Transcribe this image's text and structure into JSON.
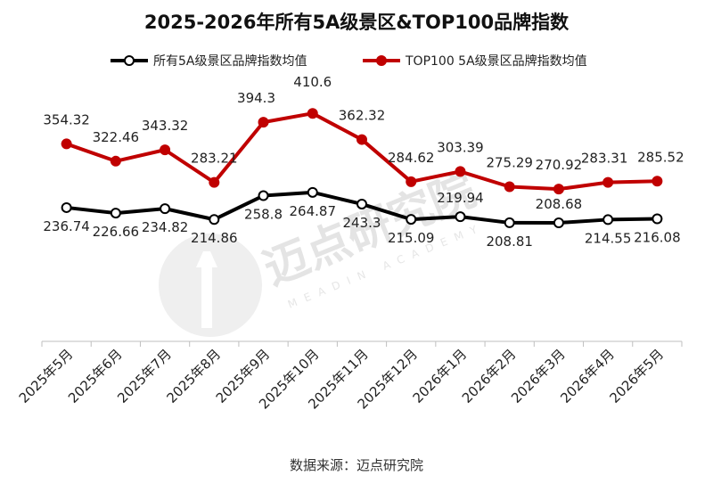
{
  "chart_data": {
    "type": "line",
    "title": "2025-2026年所有5A级景区&TOP100品牌指数",
    "categories": [
      "2025年5月",
      "2025年6月",
      "2025年7月",
      "2025年8月",
      "2025年9月",
      "2025年10月",
      "2025年11月",
      "2025年12月",
      "2026年1月",
      "2026年2月",
      "2026年3月",
      "2026年4月",
      "2026年5月"
    ],
    "series": [
      {
        "name": "所有5A级景区品牌指数均值",
        "color": "#000000",
        "marker_fill": "#ffffff",
        "values": [
          236.74,
          226.66,
          234.82,
          214.86,
          258.8,
          264.87,
          243.3,
          215.09,
          219.94,
          208.81,
          208.68,
          214.55,
          216.08
        ]
      },
      {
        "name": "TOP100 5A级景区品牌指数均值",
        "color": "#c00000",
        "marker_fill": "#c00000",
        "values": [
          354.32,
          322.46,
          343.32,
          283.21,
          394.3,
          410.6,
          362.32,
          284.62,
          303.39,
          275.29,
          270.92,
          283.31,
          285.52
        ]
      }
    ],
    "labels_black": [
      "236.74",
      "226.66",
      "234.82",
      "214.86",
      "258.8",
      "264.87",
      "243.3",
      "215.09",
      "219.94",
      "208.81",
      "208.68",
      "214.55",
      "216.08"
    ],
    "labels_red": [
      "354.32",
      "322.46",
      "343.32",
      "283.21",
      "394.3",
      "410.6",
      "362.32",
      "284.62",
      "303.39",
      "275.29",
      "270.92",
      "283.31",
      "285.52"
    ],
    "ylim": [
      -10,
      480
    ],
    "xlabel": "",
    "ylabel": "",
    "grid": false,
    "legend": "top"
  },
  "source": "数据来源：迈点研究院",
  "watermark": {
    "text": "迈点研究院",
    "sub": "MEADIN ACADEMY"
  }
}
